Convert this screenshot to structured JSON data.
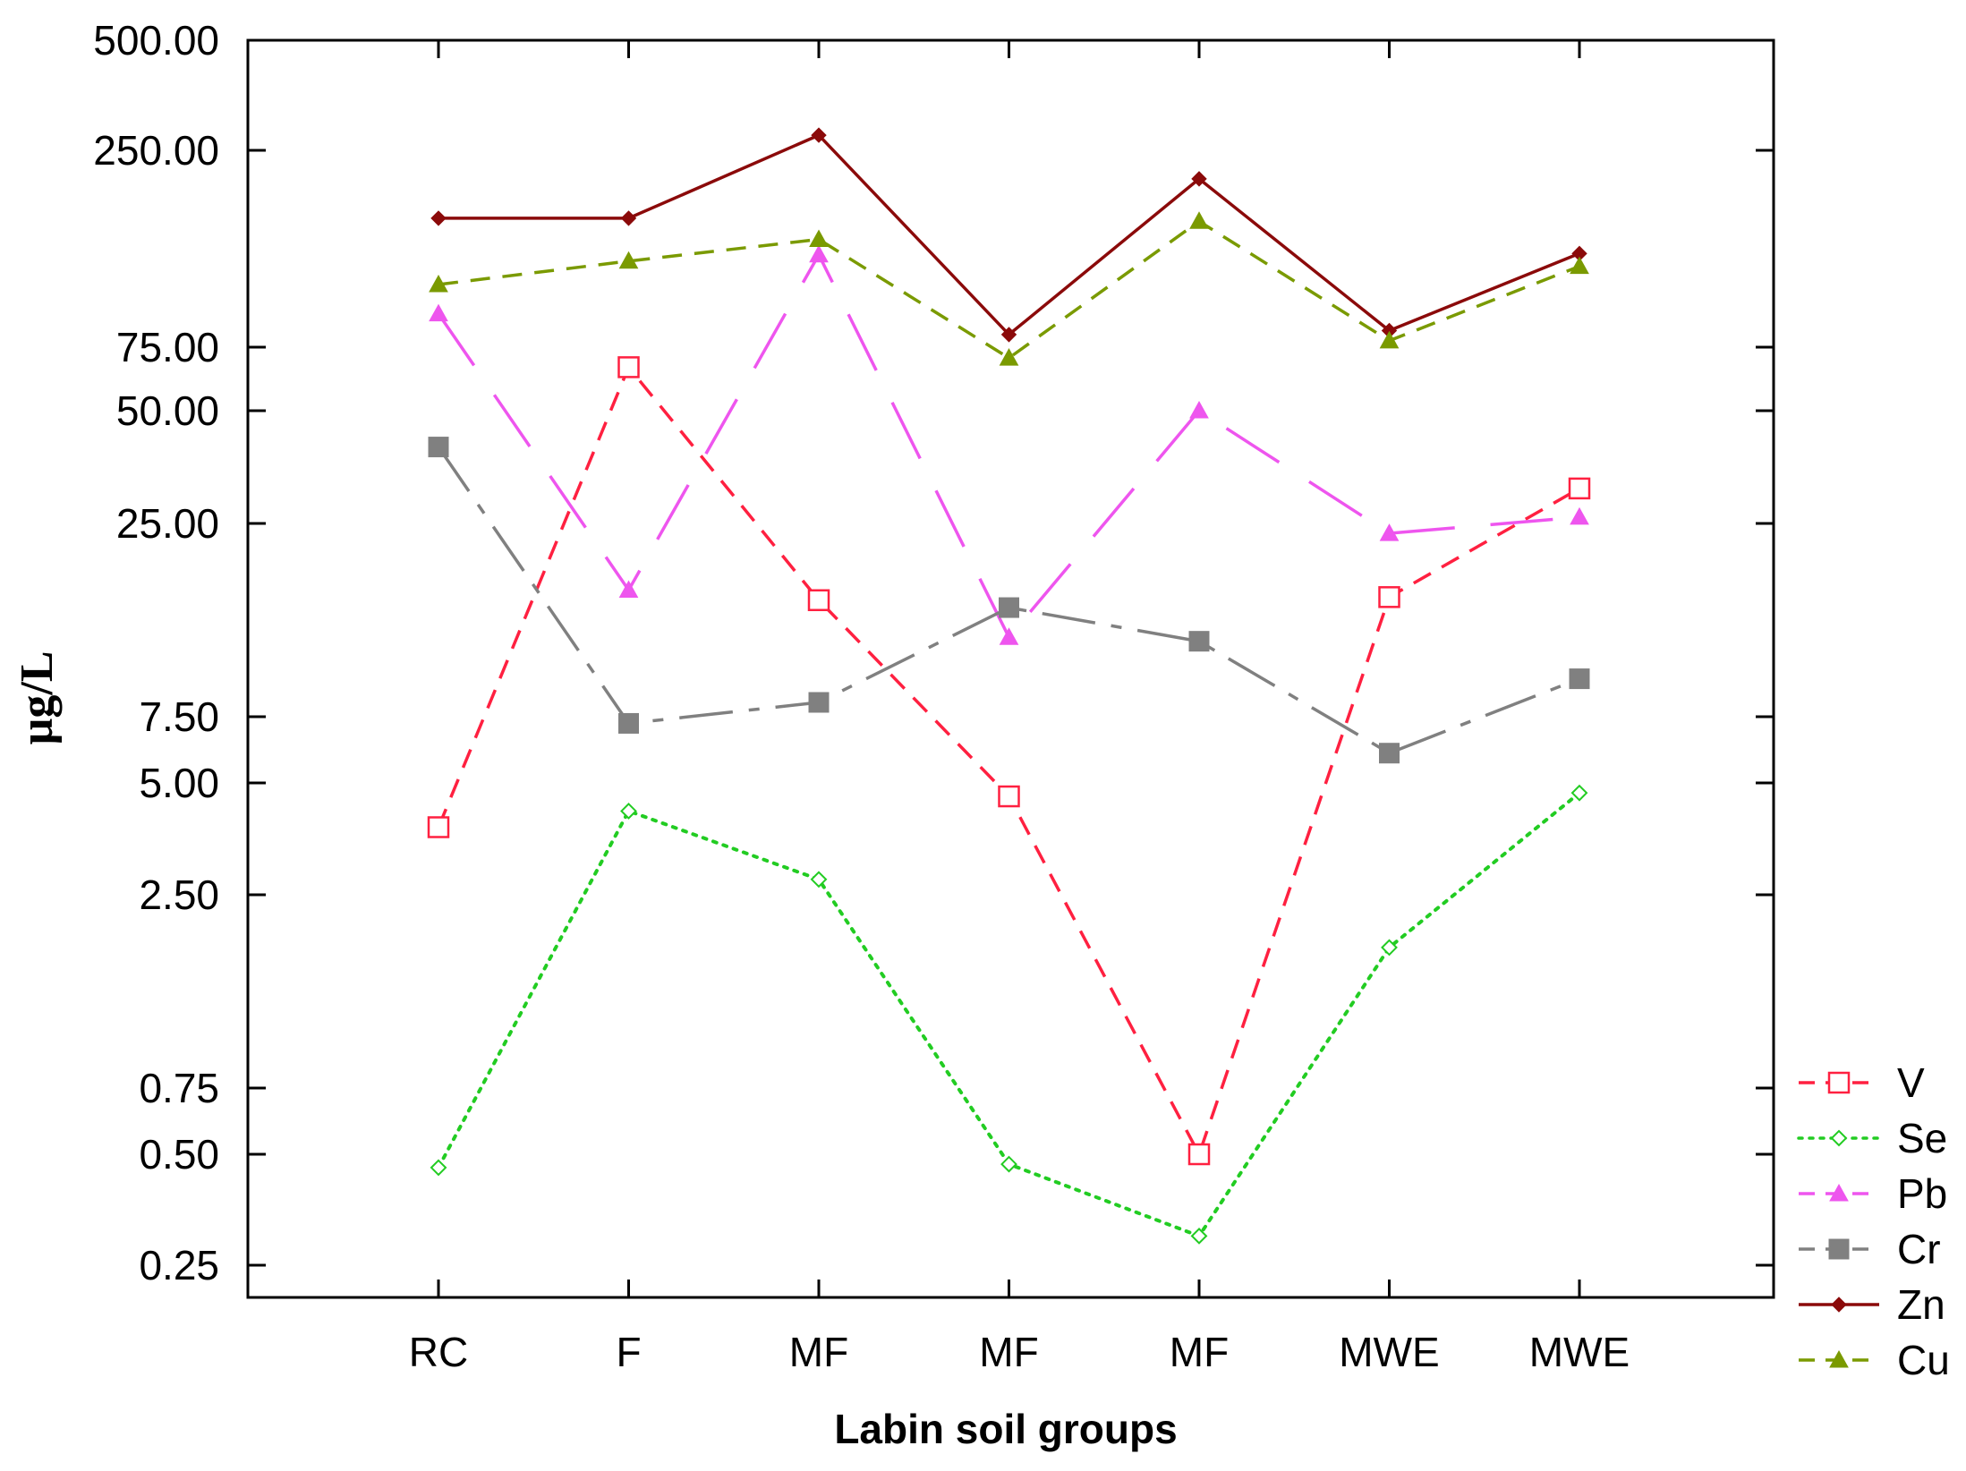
{
  "chart_data": {
    "type": "line",
    "title": "",
    "xlabel": "Labin soil groups",
    "ylabel": "µg/L",
    "categories": [
      "RC",
      "F",
      "MF",
      "MF",
      "MF",
      "MWE",
      "MWE"
    ],
    "y_ticks": [
      {
        "value": 500,
        "label": "500.00"
      },
      {
        "value": 250,
        "label": "250.00"
      },
      {
        "value": 75,
        "label": "75.00"
      },
      {
        "value": 50,
        "label": "50.00"
      },
      {
        "value": 25,
        "label": "25.00"
      },
      {
        "value": 7.5,
        "label": "7.50"
      },
      {
        "value": 5,
        "label": "5.00"
      },
      {
        "value": 2.5,
        "label": "2.50"
      },
      {
        "value": 0.75,
        "label": "0.75"
      },
      {
        "value": 0.5,
        "label": "0.50"
      },
      {
        "value": 0.25,
        "label": "0.25"
      }
    ],
    "grid": false,
    "legend_position": "bottom-right outside",
    "series": [
      {
        "name": "V",
        "color": "#ff2040",
        "marker": "square-open",
        "dash": "dashed",
        "values": [
          3.8,
          66,
          15.5,
          4.6,
          0.5,
          15.8,
          31
        ]
      },
      {
        "name": "Se",
        "color": "#22cc22",
        "marker": "diamond-open",
        "dash": "dotted",
        "values": [
          0.46,
          4.2,
          2.75,
          0.47,
          0.3,
          1.8,
          4.7
        ]
      },
      {
        "name": "Pb",
        "color": "#ee55ee",
        "marker": "triangle",
        "dash": "longdash",
        "values": [
          92,
          16.5,
          132,
          12.3,
          50,
          23.5,
          26
        ]
      },
      {
        "name": "Cr",
        "color": "#808080",
        "marker": "square",
        "dash": "dashdot",
        "values": [
          40,
          7.2,
          8.2,
          14.8,
          12,
          6.0,
          9.5
        ]
      },
      {
        "name": "Zn",
        "color": "#8b0a0a",
        "marker": "diamond",
        "dash": "solid",
        "values": [
          165,
          165,
          275,
          81,
          210,
          83,
          133
        ]
      },
      {
        "name": "Cu",
        "color": "#7a9a00",
        "marker": "triangle",
        "dash": "dashed",
        "values": [
          110,
          127,
          145,
          70,
          162,
          78,
          123
        ]
      }
    ]
  }
}
